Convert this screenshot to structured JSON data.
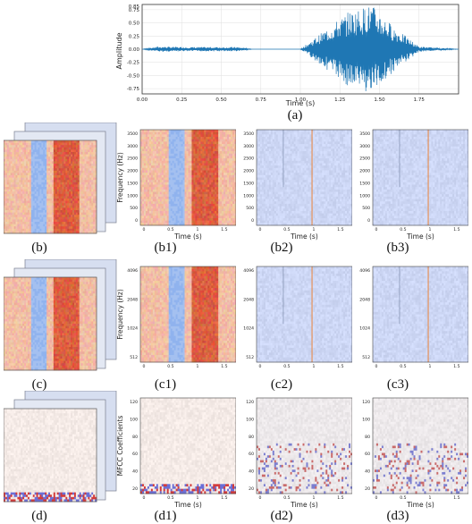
{
  "waveform": {
    "type": "line",
    "ylabel": "Amplitude",
    "xlabel": "Time (s)",
    "xlim": [
      0.0,
      2.0
    ],
    "ylim": [
      -0.85,
      0.85
    ],
    "xticks": [
      "0.00",
      "0.25",
      "0.50",
      "0.75",
      "1.00",
      "1.25",
      "1.50",
      "1.75"
    ],
    "yticks": [
      "0.75",
      "0.50",
      "0.25",
      "0.00",
      "-0.25",
      "-0.50",
      "-0.75"
    ],
    "yticks_top": "0.85",
    "grid": true,
    "caption": "(a)"
  },
  "rows": [
    {
      "id": "b",
      "ylabel": "Frequency (Hz)",
      "xlabel": "Time (s)",
      "yticks": [
        "3500",
        "3000",
        "2500",
        "2000",
        "1500",
        "1000",
        "500",
        "0"
      ],
      "xticks": [
        "0",
        "0.5",
        "1",
        "1.5"
      ],
      "captions": [
        "(b)",
        "(b1)",
        "(b2)",
        "(b3)"
      ]
    },
    {
      "id": "c",
      "ylabel": "Frequency (Hz)",
      "xlabel": "",
      "yticks": [
        "4096",
        "2048",
        "1024",
        "512"
      ],
      "xticks": [
        "0",
        "0.5",
        "1",
        "1.5"
      ],
      "captions": [
        "(c)",
        "(c1)",
        "(c2)",
        "(c3)"
      ]
    },
    {
      "id": "d",
      "ylabel": "MFCC Coefficients",
      "xlabel": "Time (s)",
      "yticks": [
        "120",
        "100",
        "80",
        "60",
        "40",
        "20"
      ],
      "xticks": [
        "0",
        "0.5",
        "1",
        "1.5"
      ],
      "captions": [
        "(d)",
        "(d1)",
        "(d2)",
        "(d3)"
      ]
    }
  ],
  "colors": {
    "wave": "#1f77b4",
    "warm": "#d9543a",
    "cool": "#7fa7e8",
    "neutral": "#dde3ee",
    "mfcc_base": "#ece5e2"
  },
  "chart_data": [
    {
      "type": "line",
      "xlabel": "Time (s)",
      "ylabel": "Amplitude",
      "ylim": [
        -0.85,
        0.85
      ],
      "x": [
        0.0,
        0.1,
        0.3,
        0.6,
        0.7,
        1.0,
        1.15,
        1.3,
        1.45,
        1.6,
        1.75,
        2.0
      ],
      "values": [
        0.0,
        0.05,
        0.04,
        0.04,
        0.0,
        0.0,
        0.35,
        0.7,
        0.85,
        0.4,
        0.05,
        0.0
      ]
    },
    {
      "type": "heatmap",
      "ylabel": "Frequency (Hz)",
      "xlabel": "Time (s)"
    },
    {
      "type": "heatmap",
      "ylabel": "Frequency (Hz)"
    },
    {
      "type": "heatmap",
      "ylabel": "MFCC Coefficients",
      "xlabel": "Time (s)"
    }
  ]
}
